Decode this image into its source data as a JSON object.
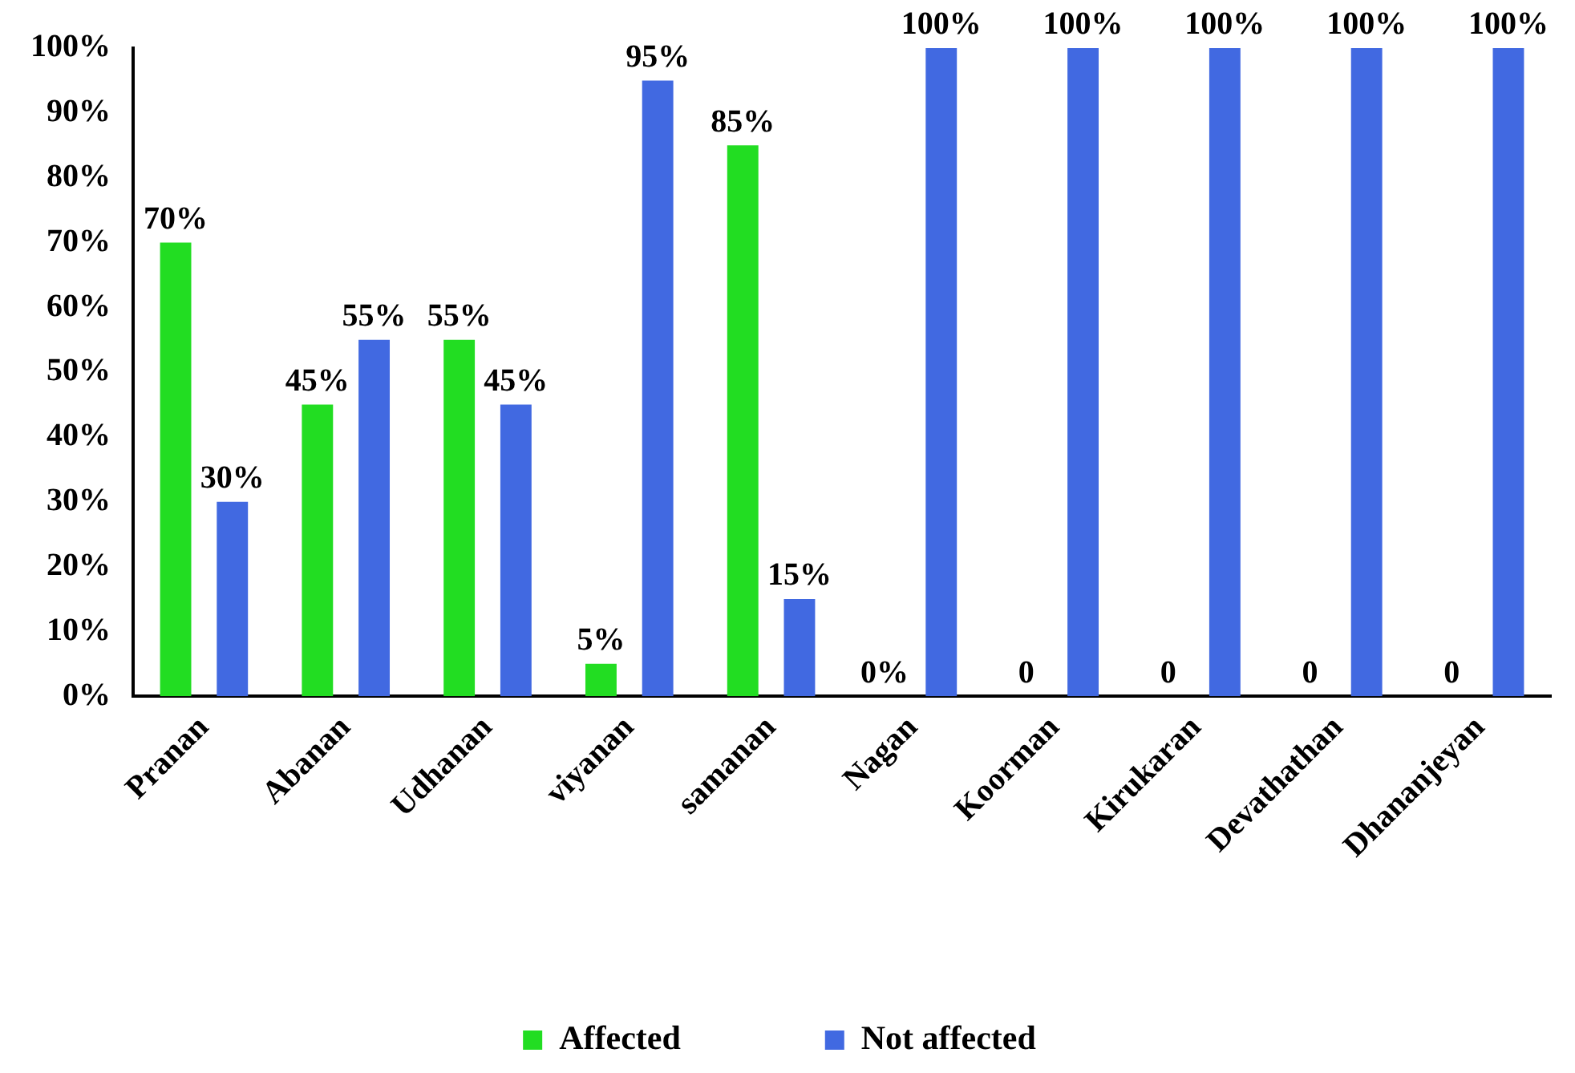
{
  "chart_data": {
    "type": "bar",
    "categories": [
      "Pranan",
      "Abanan",
      "Udhanan",
      "viyanan",
      "samanan",
      "Nagan",
      "Koorman",
      "Kirukaran",
      "Devathathan",
      "Dhananjeyan"
    ],
    "series": [
      {
        "name": "Affected",
        "color": "#22dd22",
        "values": [
          70,
          45,
          55,
          5,
          85,
          0,
          0,
          0,
          0,
          0
        ],
        "value_labels": [
          "70%",
          "45%",
          "55%",
          "5%",
          "85%",
          "0%",
          "0",
          "0",
          "0",
          "0"
        ]
      },
      {
        "name": "Not affected",
        "color": "#4169e1",
        "values": [
          30,
          55,
          45,
          95,
          15,
          100,
          100,
          100,
          100,
          100
        ],
        "value_labels": [
          "30%",
          "55%",
          "45%",
          "95%",
          "15%",
          "100%",
          "100%",
          "100%",
          "100%",
          "100%"
        ]
      }
    ],
    "ylim": [
      0,
      100
    ],
    "yticks": [
      {
        "value": 0,
        "label": "0%"
      },
      {
        "value": 10,
        "label": "10%"
      },
      {
        "value": 20,
        "label": "20%"
      },
      {
        "value": 30,
        "label": "30%"
      },
      {
        "value": 40,
        "label": "40%"
      },
      {
        "value": 50,
        "label": "50%"
      },
      {
        "value": 60,
        "label": "60%"
      },
      {
        "value": 70,
        "label": "70%"
      },
      {
        "value": 80,
        "label": "80%"
      },
      {
        "value": 90,
        "label": "90%"
      },
      {
        "value": 100,
        "label": "100%"
      }
    ],
    "grid": false,
    "legend": "bottom"
  }
}
